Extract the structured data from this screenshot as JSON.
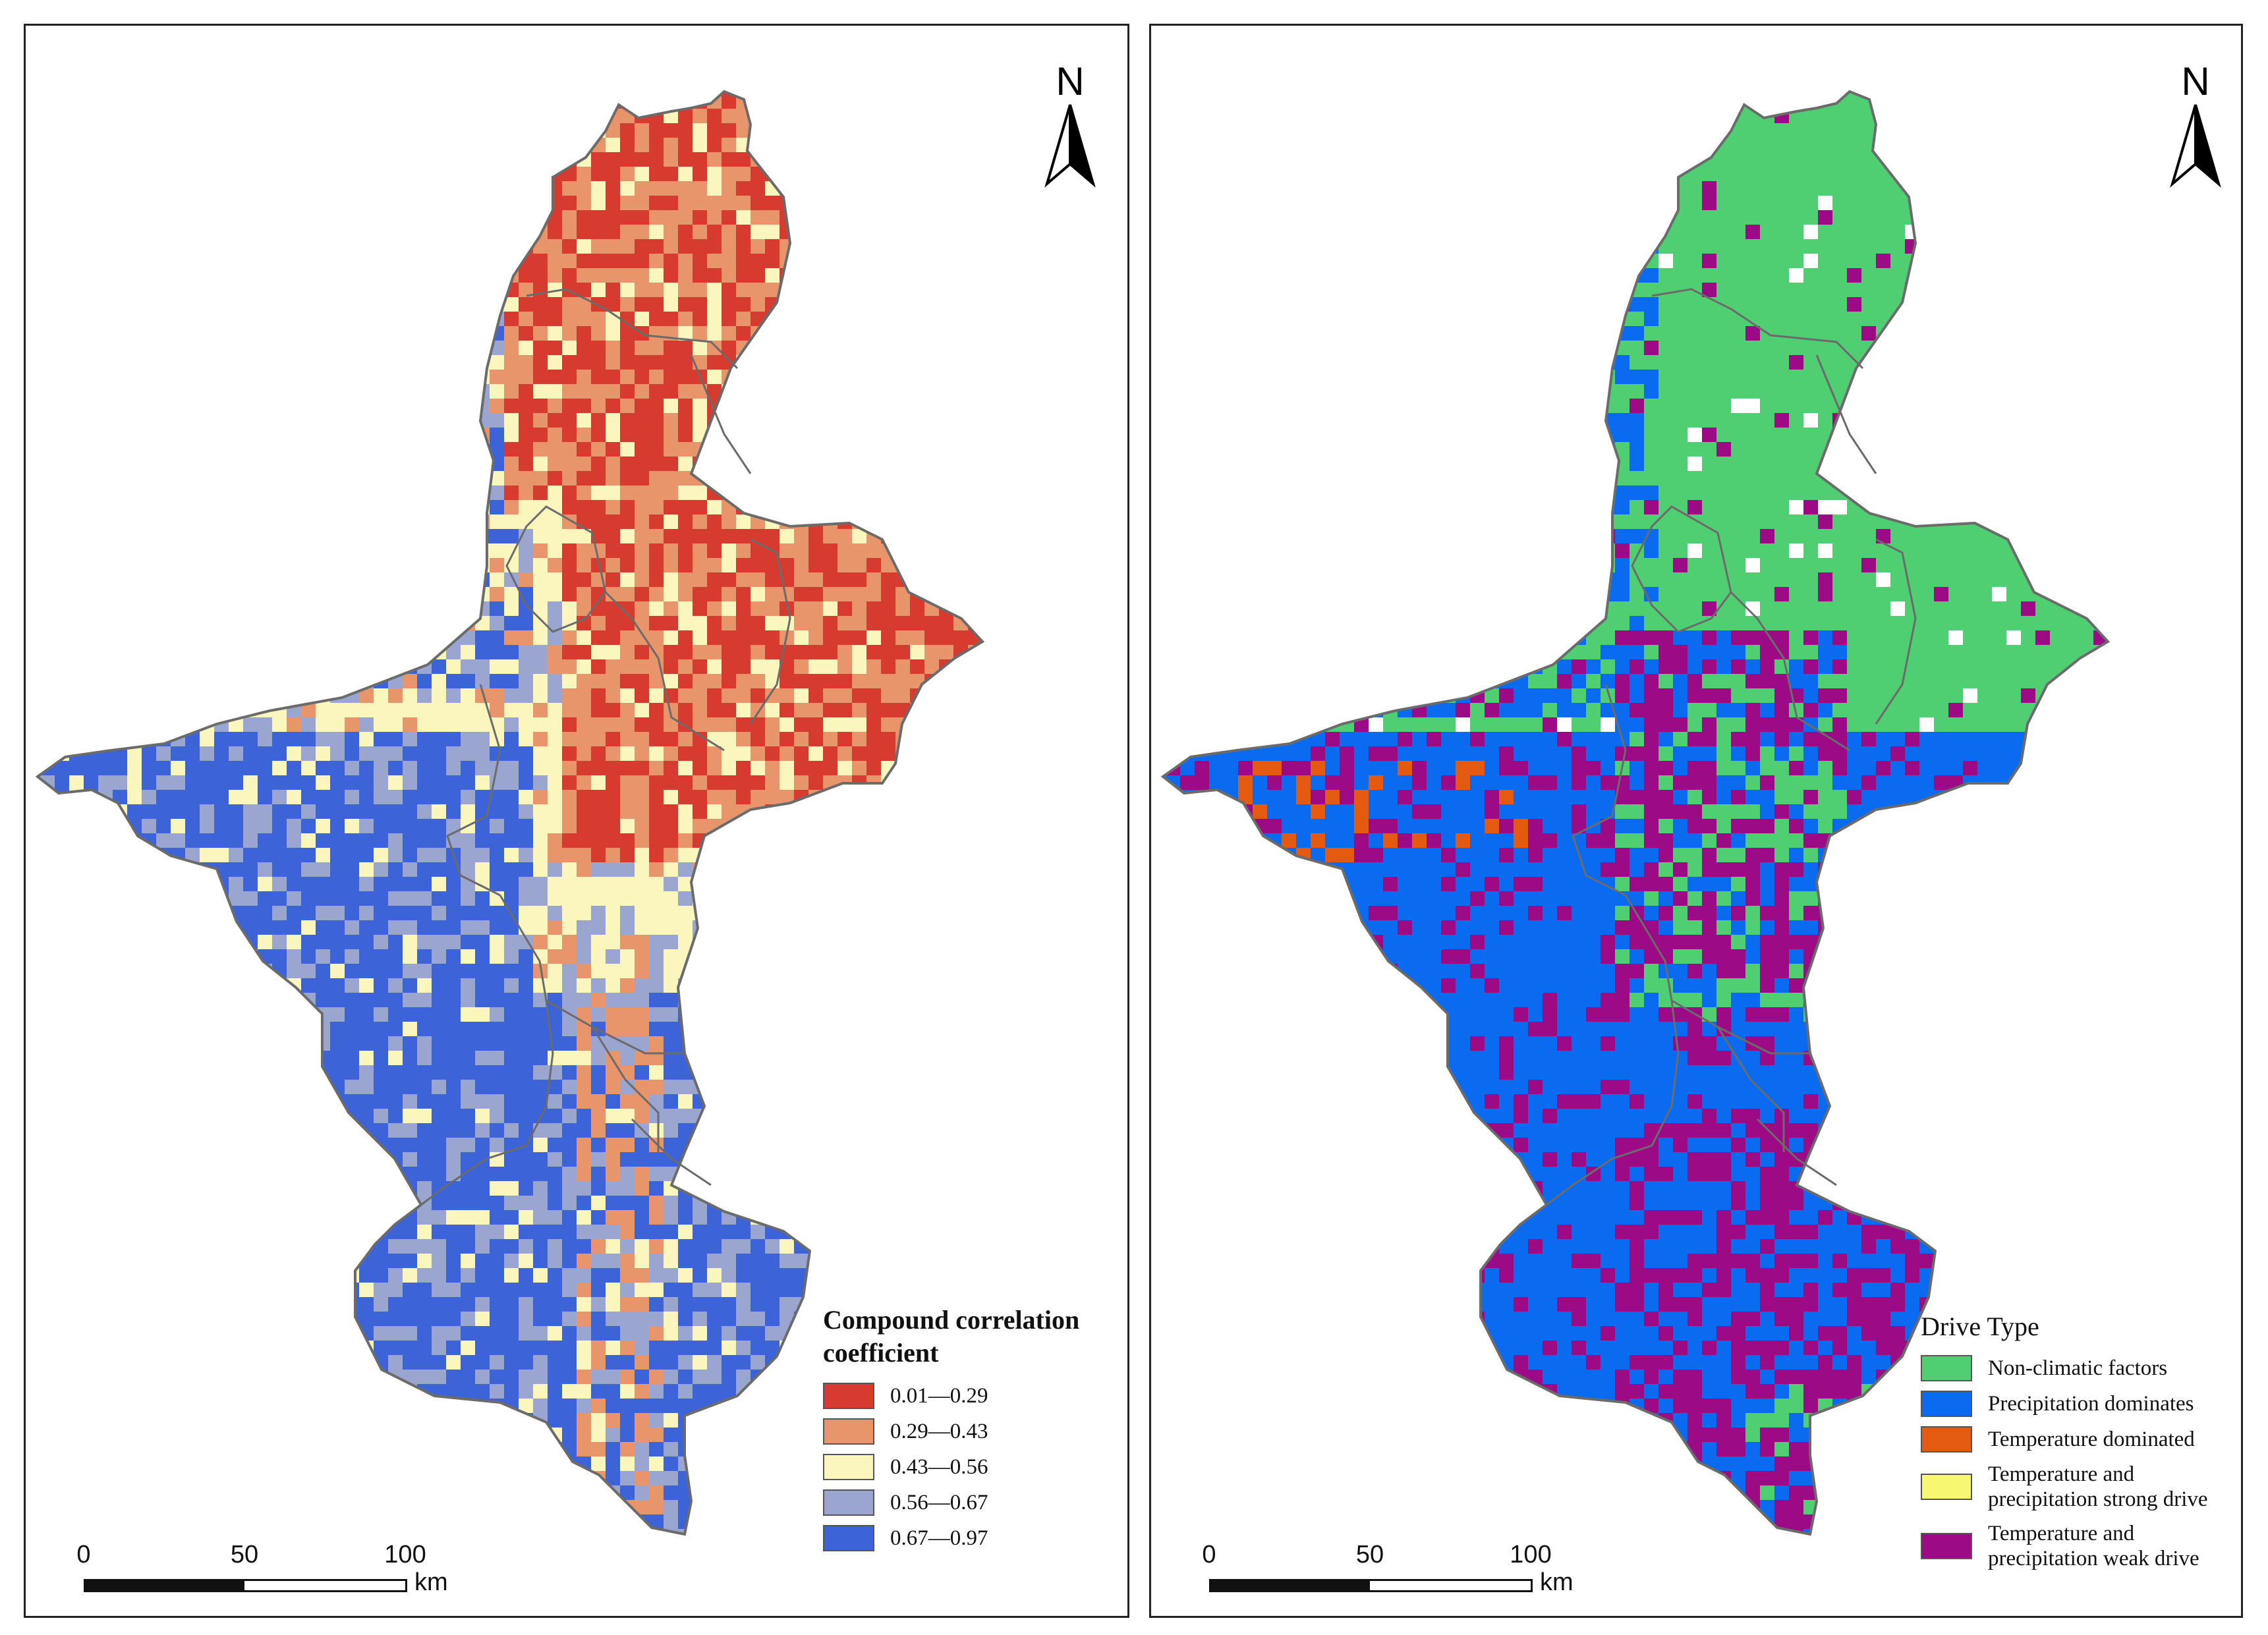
{
  "north_label": "N",
  "scale": {
    "ticks": [
      "0",
      "50",
      "100"
    ],
    "unit": "km"
  },
  "left_map": {
    "legend_title": "Compound correlation coefficient",
    "legend": [
      {
        "label": "0.01—0.29",
        "color": "#d73a2e"
      },
      {
        "label": "0.29—0.43",
        "color": "#e8956b"
      },
      {
        "label": "0.43—0.56",
        "color": "#fbf6bd"
      },
      {
        "label": "0.56—0.67",
        "color": "#9aa6cf"
      },
      {
        "label": "0.67—0.97",
        "color": "#3c63d8"
      }
    ]
  },
  "right_map": {
    "legend_title": "Drive Type",
    "legend": [
      {
        "label": "Non-climatic factors",
        "color": "#4fcf72"
      },
      {
        "label": "Precipitation dominates",
        "color": "#0a6bf0"
      },
      {
        "label": "Temperature dominated",
        "color": "#e45a10"
      },
      {
        "label": "Temperature and precipitation strong drive",
        "color": "#f8f772"
      },
      {
        "label": "Temperature and precipitation weak drive",
        "color": "#9c0a86"
      }
    ]
  }
}
